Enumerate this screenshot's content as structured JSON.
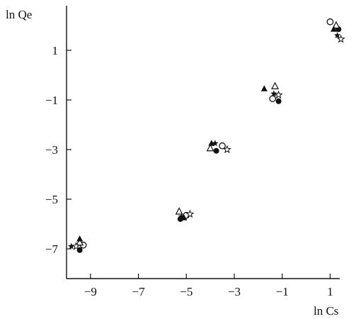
{
  "chart_data": {
    "type": "scatter",
    "title": "",
    "xlabel": "ln  Cs",
    "ylabel": "ln  Qe",
    "xlim": [
      -10.0,
      1.4
    ],
    "ylim": [
      -8.2,
      2.8
    ],
    "xticks": [
      -9,
      -7,
      -5,
      -3,
      -1,
      1
    ],
    "yticks": [
      1,
      -1,
      -3,
      -5,
      -7
    ],
    "xtick_labels": [
      "−9",
      "−7",
      "−5",
      "−3",
      "−1",
      "1"
    ],
    "ytick_labels": [
      "1",
      "−1",
      "−3",
      "−5",
      "−7"
    ],
    "grid": false,
    "legend": null,
    "series": [
      {
        "marker": "open-circle",
        "points": [
          [
            -9.3,
            -6.85
          ],
          [
            -5.0,
            -5.65
          ],
          [
            -3.5,
            -2.85
          ],
          [
            -1.4,
            -0.95
          ],
          [
            1.0,
            2.15
          ]
        ]
      },
      {
        "marker": "filled-circle",
        "points": [
          [
            -9.45,
            -7.05
          ],
          [
            -5.25,
            -5.8
          ],
          [
            -3.75,
            -3.05
          ],
          [
            -1.15,
            -1.05
          ],
          [
            1.35,
            1.85
          ]
        ]
      },
      {
        "marker": "open-triangle",
        "points": [
          [
            -9.45,
            -6.75
          ],
          [
            -5.3,
            -5.5
          ],
          [
            -4.0,
            -2.95
          ],
          [
            -1.3,
            -0.45
          ],
          [
            1.25,
            2.0
          ]
        ]
      },
      {
        "marker": "filled-triangle",
        "points": [
          [
            -9.45,
            -6.6
          ],
          [
            -5.1,
            -5.75
          ],
          [
            -3.95,
            -2.75
          ],
          [
            -1.75,
            -0.55
          ],
          [
            1.15,
            1.85
          ]
        ]
      },
      {
        "marker": "filled-star",
        "points": [
          [
            -9.8,
            -6.9
          ],
          [
            -5.2,
            -5.7
          ],
          [
            -3.8,
            -2.75
          ],
          [
            -1.35,
            -0.75
          ],
          [
            1.3,
            1.6
          ]
        ]
      },
      {
        "marker": "open-star",
        "points": [
          [
            -9.6,
            -6.9
          ],
          [
            -4.85,
            -5.6
          ],
          [
            -3.3,
            -3.0
          ],
          [
            -1.15,
            -0.8
          ],
          [
            1.45,
            1.45
          ]
        ]
      }
    ]
  }
}
